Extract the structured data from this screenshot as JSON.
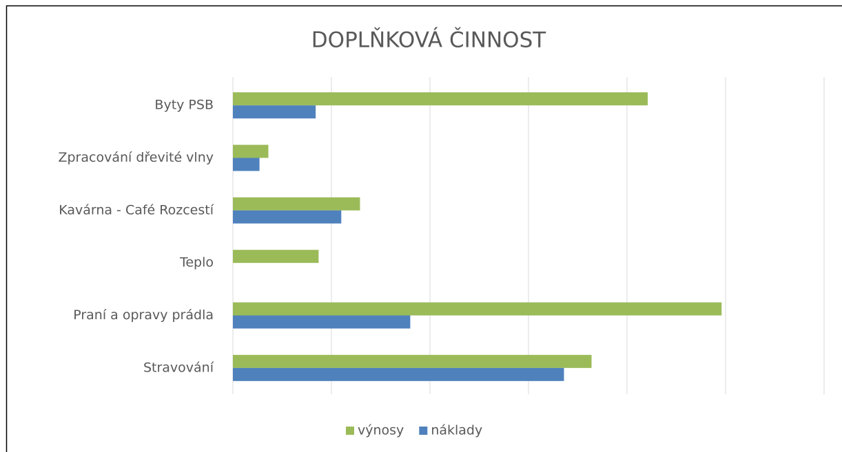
{
  "chart_data": {
    "type": "bar",
    "orientation": "horizontal",
    "title": "DOPLŇKOVÁ ČINNOST",
    "categories": [
      "Byty PSB",
      "Zpracování dřevité vlny",
      "Kavárna - Café Rozcestí",
      "Teplo",
      "Praní a opravy prádla",
      "Stravování"
    ],
    "series": [
      {
        "name": "výnosy",
        "color": "#9bbb59",
        "values": [
          4.21,
          0.36,
          1.29,
          0.87,
          4.96,
          3.64
        ]
      },
      {
        "name": "náklady",
        "color": "#4f81bd",
        "values": [
          0.84,
          0.27,
          1.1,
          0,
          1.8,
          3.36
        ]
      }
    ],
    "xlim": [
      0,
      6
    ],
    "xticks": [
      0,
      1,
      2,
      3,
      4,
      5,
      6
    ],
    "grid": true,
    "legend": "bottom"
  }
}
